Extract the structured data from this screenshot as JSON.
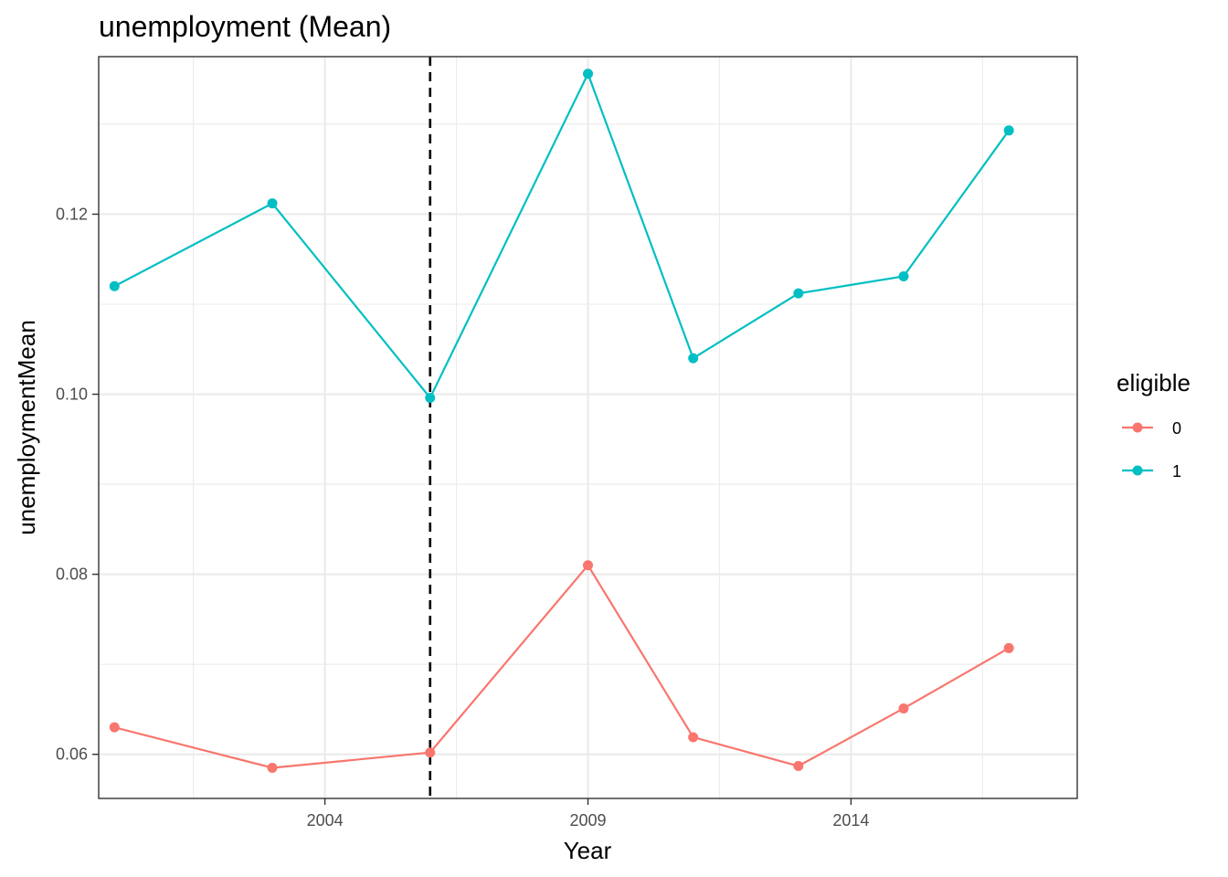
{
  "chart_data": {
    "type": "line",
    "title": "unemployment (Mean)",
    "xlabel": "Year",
    "ylabel": "unemploymentMean",
    "xlim": [
      1999.7,
      2018.3
    ],
    "ylim": [
      0.0551,
      0.1375
    ],
    "x_ticks": [
      2004,
      2009,
      2014
    ],
    "x_tick_labels": [
      "2004",
      "2009",
      "2014"
    ],
    "y_ticks": [
      0.06,
      0.08,
      0.1,
      0.12
    ],
    "y_tick_labels": [
      "0.06",
      "0.08",
      "0.10",
      "0.12"
    ],
    "grid": true,
    "vline_x": 2006,
    "vline_style": "dashed",
    "legend": {
      "title": "eligible",
      "position": "right"
    },
    "x": [
      2000,
      2003,
      2006,
      2009,
      2011,
      2013,
      2015,
      2017
    ],
    "series": [
      {
        "name": "0",
        "color": "#F8766D",
        "values": [
          0.063,
          0.0585,
          0.0602,
          0.081,
          0.0619,
          0.0587,
          0.0651,
          0.0718
        ]
      },
      {
        "name": "1",
        "color": "#00BFC4",
        "values": [
          0.112,
          0.1212,
          0.0996,
          0.1356,
          0.104,
          0.1112,
          0.1131,
          0.1293
        ]
      }
    ]
  }
}
